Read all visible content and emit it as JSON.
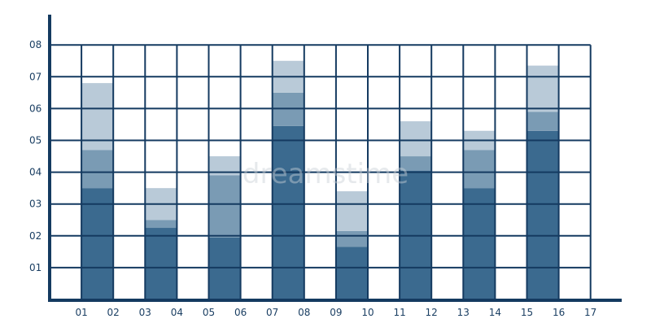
{
  "chart_data": {
    "type": "bar",
    "stacked": true,
    "x_ticks": [
      "01",
      "02",
      "03",
      "04",
      "05",
      "06",
      "07",
      "08",
      "09",
      "10",
      "11",
      "12",
      "13",
      "14",
      "15",
      "16",
      "17"
    ],
    "y_ticks": [
      "01",
      "02",
      "03",
      "04",
      "05",
      "06",
      "07",
      "08"
    ],
    "ylim": [
      0,
      8
    ],
    "xlim": [
      0,
      17
    ],
    "grid": true,
    "bar_spans": [
      [
        1,
        2
      ],
      [
        3,
        4
      ],
      [
        5,
        6
      ],
      [
        7,
        8
      ],
      [
        9,
        10
      ],
      [
        11,
        12
      ],
      [
        13,
        14
      ],
      [
        15,
        16
      ]
    ],
    "series": [
      {
        "values": [
          3.5,
          2.25,
          1.95,
          5.45,
          1.65,
          4.05,
          3.5,
          5.3
        ]
      },
      {
        "values": [
          1.2,
          0.25,
          1.95,
          1.05,
          0.5,
          0.45,
          1.2,
          0.6
        ]
      },
      {
        "values": [
          2.1,
          1.0,
          0.6,
          1.0,
          1.25,
          1.1,
          0.6,
          1.45
        ]
      }
    ],
    "colors": [
      "#3b6a8f",
      "#7a9bb4",
      "#b9cad8"
    ],
    "grid_color": "#143a60",
    "watermark": "dreamstime"
  }
}
